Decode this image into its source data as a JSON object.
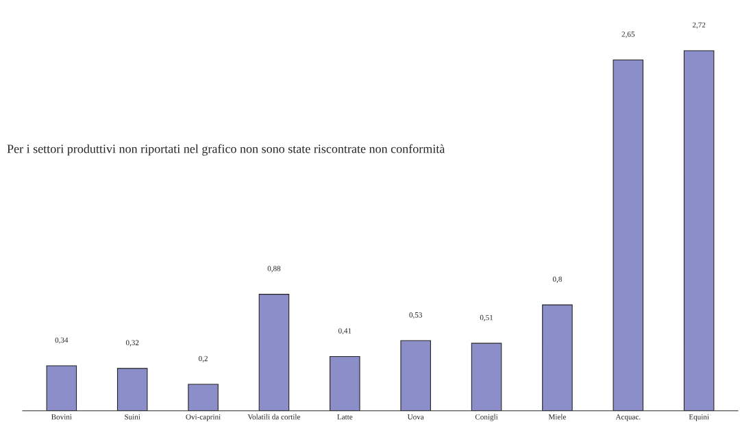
{
  "chart_data": {
    "type": "bar",
    "categories": [
      "Bovini",
      "Suini",
      "Ovi-caprini",
      "Volatili da cortile",
      "Latte",
      "Uova",
      "Conigli",
      "Miele",
      "Acquac.",
      "Equini"
    ],
    "values": [
      0.34,
      0.32,
      0.2,
      0.88,
      0.41,
      0.53,
      0.51,
      0.8,
      2.65,
      2.72
    ],
    "value_labels": [
      "0,34",
      "0,32",
      "0,2",
      "0,88",
      "0,41",
      "0,53",
      "0,51",
      "0,8",
      "2,65",
      "2,72"
    ],
    "color": "#8b8ec8",
    "tick_labels": "x",
    "annotations": [
      "Per i settori produttivi non riportati nel grafico non sono state riscontrate non conformità"
    ]
  }
}
